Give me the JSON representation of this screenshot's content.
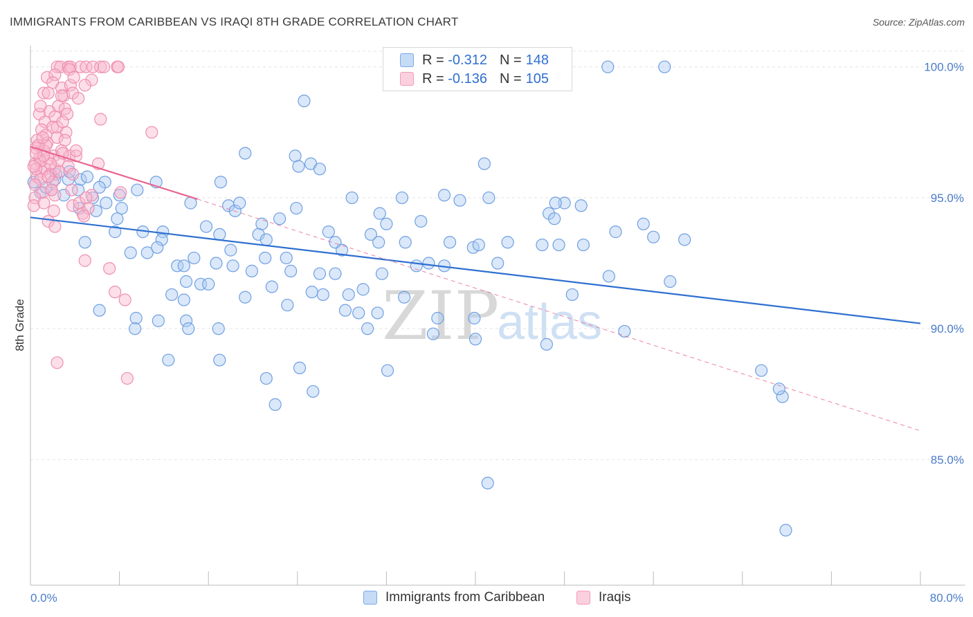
{
  "title": "IMMIGRANTS FROM CARIBBEAN VS IRAQI 8TH GRADE CORRELATION CHART",
  "source": "Source: ZipAtlas.com",
  "watermark": {
    "zip": "ZIP",
    "atlas": "atlas"
  },
  "legend": {
    "r_label": "R =",
    "n_label": "N =",
    "rows": [
      {
        "r": "-0.312",
        "n": "148",
        "color": "#7aaae8"
      },
      {
        "r": "-0.136",
        "n": "105",
        "color": "#f29bb8"
      }
    ]
  },
  "chart_data": {
    "type": "scatter",
    "title": "IMMIGRANTS FROM CARIBBEAN VS IRAQI 8TH GRADE CORRELATION CHART",
    "xlabel": "",
    "ylabel": "8th Grade",
    "xlim": [
      0,
      80
    ],
    "ylim": [
      80.2,
      100.6
    ],
    "x_tick_labels": [
      "0.0%",
      "80.0%"
    ],
    "y_ticks": [
      85,
      90,
      95,
      100
    ],
    "y_tick_labels": [
      "85.0%",
      "90.0%",
      "95.0%",
      "100.0%"
    ],
    "grid": true,
    "series": [
      {
        "name": "Immigrants from Caribbean",
        "color": "#7aaae8",
        "line_color": "#2e6fd0",
        "trend": {
          "x0": 0,
          "y0": 94.25,
          "x1": 80,
          "y1": 90.2,
          "style": "solid"
        },
        "points": [
          [
            51.9,
            100.0
          ],
          [
            57.0,
            100.0
          ],
          [
            24.6,
            98.7
          ],
          [
            19.3,
            96.7
          ],
          [
            23.8,
            96.6
          ],
          [
            24.1,
            96.2
          ],
          [
            25.2,
            96.3
          ],
          [
            26.0,
            96.1
          ],
          [
            40.8,
            96.3
          ],
          [
            17.1,
            95.6
          ],
          [
            0.3,
            95.6
          ],
          [
            2.3,
            95.9
          ],
          [
            3.4,
            95.7
          ],
          [
            4.5,
            95.7
          ],
          [
            5.1,
            95.8
          ],
          [
            6.7,
            95.6
          ],
          [
            9.6,
            95.3
          ],
          [
            0.9,
            95.2
          ],
          [
            1.9,
            95.3
          ],
          [
            3.0,
            95.1
          ],
          [
            4.3,
            95.3
          ],
          [
            6.2,
            95.4
          ],
          [
            5.6,
            95.0
          ],
          [
            6.8,
            94.8
          ],
          [
            8.0,
            95.1
          ],
          [
            14.4,
            94.8
          ],
          [
            17.8,
            94.7
          ],
          [
            18.4,
            94.5
          ],
          [
            18.8,
            94.8
          ],
          [
            23.9,
            94.6
          ],
          [
            28.9,
            95.0
          ],
          [
            33.4,
            95.0
          ],
          [
            37.2,
            95.1
          ],
          [
            38.6,
            94.9
          ],
          [
            41.2,
            95.0
          ],
          [
            46.6,
            94.4
          ],
          [
            48.0,
            94.8
          ],
          [
            49.5,
            94.7
          ],
          [
            4.4,
            94.6
          ],
          [
            5.9,
            94.5
          ],
          [
            8.2,
            94.6
          ],
          [
            7.8,
            94.2
          ],
          [
            15.8,
            93.9
          ],
          [
            17.0,
            93.6
          ],
          [
            20.8,
            94.0
          ],
          [
            22.4,
            94.2
          ],
          [
            26.8,
            93.7
          ],
          [
            30.6,
            93.6
          ],
          [
            32.0,
            94.0
          ],
          [
            35.1,
            94.1
          ],
          [
            47.1,
            94.2
          ],
          [
            55.1,
            94.0
          ],
          [
            56.0,
            93.5
          ],
          [
            4.9,
            93.3
          ],
          [
            7.6,
            93.7
          ],
          [
            10.1,
            93.7
          ],
          [
            11.9,
            93.7
          ],
          [
            11.8,
            93.4
          ],
          [
            18.0,
            93.0
          ],
          [
            20.5,
            93.6
          ],
          [
            21.2,
            93.4
          ],
          [
            27.4,
            93.3
          ],
          [
            28.0,
            93.0
          ],
          [
            31.3,
            93.3
          ],
          [
            33.7,
            93.3
          ],
          [
            37.7,
            93.3
          ],
          [
            39.8,
            93.1
          ],
          [
            40.3,
            93.2
          ],
          [
            42.9,
            93.3
          ],
          [
            46.0,
            93.2
          ],
          [
            47.5,
            93.2
          ],
          [
            49.7,
            93.2
          ],
          [
            58.8,
            93.4
          ],
          [
            9.0,
            92.9
          ],
          [
            10.5,
            92.9
          ],
          [
            11.4,
            93.1
          ],
          [
            13.2,
            92.4
          ],
          [
            13.8,
            92.4
          ],
          [
            14.7,
            92.7
          ],
          [
            21.1,
            92.7
          ],
          [
            23.0,
            92.7
          ],
          [
            16.7,
            92.5
          ],
          [
            18.2,
            92.4
          ],
          [
            19.9,
            92.2
          ],
          [
            23.4,
            92.2
          ],
          [
            26.0,
            92.1
          ],
          [
            27.4,
            92.1
          ],
          [
            31.6,
            92.1
          ],
          [
            34.7,
            92.4
          ],
          [
            35.8,
            92.5
          ],
          [
            37.2,
            92.4
          ],
          [
            42.0,
            92.5
          ],
          [
            14.0,
            91.8
          ],
          [
            15.3,
            91.7
          ],
          [
            16.0,
            91.7
          ],
          [
            21.7,
            91.6
          ],
          [
            25.3,
            91.4
          ],
          [
            26.3,
            91.3
          ],
          [
            28.6,
            91.3
          ],
          [
            29.9,
            91.5
          ],
          [
            33.6,
            91.2
          ],
          [
            48.7,
            91.3
          ],
          [
            52.0,
            92.0
          ],
          [
            57.5,
            91.8
          ],
          [
            12.7,
            91.3
          ],
          [
            13.8,
            91.1
          ],
          [
            19.3,
            91.2
          ],
          [
            23.1,
            90.9
          ],
          [
            28.3,
            90.7
          ],
          [
            29.5,
            90.6
          ],
          [
            31.2,
            90.6
          ],
          [
            36.6,
            90.4
          ],
          [
            39.9,
            90.4
          ],
          [
            11.5,
            90.3
          ],
          [
            9.5,
            90.4
          ],
          [
            6.2,
            90.7
          ],
          [
            14.0,
            90.3
          ],
          [
            14.2,
            90.0
          ],
          [
            16.9,
            90.0
          ],
          [
            30.3,
            90.0
          ],
          [
            36.2,
            89.8
          ],
          [
            40.0,
            89.6
          ],
          [
            46.4,
            89.4
          ],
          [
            53.4,
            89.9
          ],
          [
            9.4,
            90.0
          ],
          [
            12.4,
            88.8
          ],
          [
            17.0,
            88.8
          ],
          [
            24.2,
            88.5
          ],
          [
            32.1,
            88.4
          ],
          [
            21.2,
            88.1
          ],
          [
            25.4,
            87.6
          ],
          [
            22.0,
            87.1
          ],
          [
            65.7,
            88.4
          ],
          [
            67.6,
            87.4
          ],
          [
            67.3,
            87.7
          ],
          [
            52.6,
            93.7
          ],
          [
            41.1,
            84.1
          ],
          [
            67.9,
            82.3
          ],
          [
            2.2,
            95.7
          ],
          [
            3.5,
            96.0
          ],
          [
            1.4,
            95.4
          ],
          [
            11.3,
            95.6
          ],
          [
            31.4,
            94.4
          ],
          [
            47.2,
            94.8
          ]
        ]
      },
      {
        "name": "Iraqis",
        "color": "#f29bb8",
        "line_color": "#e8648e",
        "trend": {
          "x0": 0,
          "y0": 96.95,
          "x1": 15,
          "y1": 94.95,
          "style": "solid"
        },
        "trend_extended": {
          "x0": 15,
          "y0": 94.95,
          "x1": 80,
          "y1": 86.1,
          "style": "dashed"
        },
        "points": [
          [
            2.4,
            100.0
          ],
          [
            2.7,
            100.0
          ],
          [
            3.4,
            100.0
          ],
          [
            3.6,
            100.0
          ],
          [
            4.5,
            100.0
          ],
          [
            5.0,
            100.0
          ],
          [
            5.6,
            100.0
          ],
          [
            6.3,
            100.0
          ],
          [
            6.6,
            100.0
          ],
          [
            7.8,
            100.0
          ],
          [
            7.9,
            100.0
          ],
          [
            1.5,
            99.6
          ],
          [
            2.2,
            99.7
          ],
          [
            3.5,
            99.9
          ],
          [
            2.0,
            99.4
          ],
          [
            2.8,
            99.2
          ],
          [
            3.6,
            99.3
          ],
          [
            5.5,
            99.5
          ],
          [
            1.2,
            99.0
          ],
          [
            3.0,
            98.9
          ],
          [
            3.8,
            99.0
          ],
          [
            4.3,
            98.8
          ],
          [
            2.5,
            98.5
          ],
          [
            1.7,
            98.3
          ],
          [
            3.1,
            98.4
          ],
          [
            0.8,
            98.2
          ],
          [
            2.2,
            98.1
          ],
          [
            3.3,
            98.2
          ],
          [
            1.3,
            97.9
          ],
          [
            6.3,
            98.0
          ],
          [
            1.0,
            97.6
          ],
          [
            2.0,
            97.7
          ],
          [
            3.2,
            97.5
          ],
          [
            1.4,
            97.4
          ],
          [
            2.4,
            97.3
          ],
          [
            3.1,
            97.2
          ],
          [
            10.9,
            97.5
          ],
          [
            0.6,
            97.2
          ],
          [
            1.5,
            97.1
          ],
          [
            0.5,
            96.9
          ],
          [
            1.2,
            96.8
          ],
          [
            2.1,
            96.6
          ],
          [
            2.8,
            96.8
          ],
          [
            0.8,
            96.5
          ],
          [
            1.6,
            96.5
          ],
          [
            3.5,
            96.6
          ],
          [
            4.1,
            96.6
          ],
          [
            0.4,
            96.3
          ],
          [
            1.3,
            96.1
          ],
          [
            2.2,
            96.1
          ],
          [
            2.5,
            96.4
          ],
          [
            3.4,
            96.2
          ],
          [
            6.1,
            96.3
          ],
          [
            1.0,
            96.0
          ],
          [
            1.8,
            95.9
          ],
          [
            2.0,
            95.6
          ],
          [
            0.6,
            95.8
          ],
          [
            0.9,
            95.7
          ],
          [
            1.6,
            95.8
          ],
          [
            0.4,
            95.5
          ],
          [
            1.1,
            95.2
          ],
          [
            2.2,
            95.1
          ],
          [
            3.7,
            95.3
          ],
          [
            5.5,
            95.1
          ],
          [
            8.1,
            95.2
          ],
          [
            0.4,
            95.0
          ],
          [
            0.3,
            94.7
          ],
          [
            1.2,
            94.8
          ],
          [
            2.1,
            94.5
          ],
          [
            3.8,
            94.7
          ],
          [
            4.4,
            94.8
          ],
          [
            4.7,
            94.4
          ],
          [
            5.2,
            94.6
          ],
          [
            1.6,
            94.1
          ],
          [
            2.2,
            93.9
          ],
          [
            4.9,
            92.6
          ],
          [
            7.1,
            92.3
          ],
          [
            7.6,
            91.4
          ],
          [
            8.5,
            91.1
          ],
          [
            2.4,
            88.7
          ],
          [
            8.7,
            88.1
          ],
          [
            4.8,
            94.3
          ],
          [
            5.0,
            95.0
          ],
          [
            1.8,
            96.3
          ],
          [
            0.9,
            96.4
          ],
          [
            0.5,
            96.1
          ],
          [
            2.9,
            96.7
          ],
          [
            1.4,
            97.0
          ],
          [
            2.6,
            96.0
          ],
          [
            1.9,
            95.3
          ],
          [
            0.7,
            97.0
          ],
          [
            3.8,
            95.9
          ],
          [
            4.1,
            96.8
          ],
          [
            0.3,
            96.2
          ],
          [
            1.2,
            96.6
          ],
          [
            2.4,
            97.7
          ],
          [
            0.9,
            98.5
          ],
          [
            2.8,
            98.9
          ],
          [
            1.6,
            99.0
          ],
          [
            3.9,
            99.6
          ],
          [
            4.9,
            99.3
          ],
          [
            0.5,
            96.7
          ],
          [
            1.1,
            97.3
          ],
          [
            2.9,
            97.9
          ]
        ]
      }
    ]
  },
  "bottom_legend": [
    {
      "label": "Immigrants from Caribbean",
      "color": "#7aaae8"
    },
    {
      "label": "Iraqis",
      "color": "#f29bb8"
    }
  ]
}
